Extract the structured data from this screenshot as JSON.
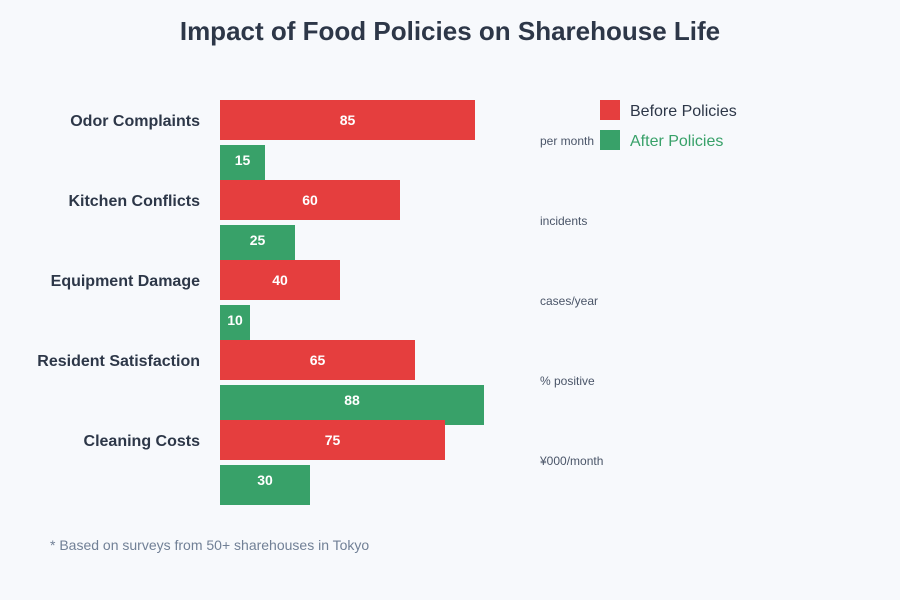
{
  "chart_data": {
    "type": "bar",
    "orientation": "horizontal",
    "title": "Impact of Food Policies on Sharehouse Life",
    "categories": [
      "Odor Complaints",
      "Kitchen Conflicts",
      "Equipment Damage",
      "Resident Satisfaction",
      "Cleaning Costs"
    ],
    "units": [
      "per month",
      "incidents",
      "cases/year",
      "% positive",
      "¥000/month"
    ],
    "series": [
      {
        "name": "Before Policies",
        "color": "#e53e3e",
        "values": [
          85,
          60,
          40,
          65,
          75
        ]
      },
      {
        "name": "After Policies",
        "color": "#38a169",
        "values": [
          15,
          25,
          10,
          88,
          30
        ]
      }
    ],
    "legend_position": "top-right",
    "grid": false,
    "footnote": "* Based on surveys from 50+ sharehouses in Tokyo"
  }
}
